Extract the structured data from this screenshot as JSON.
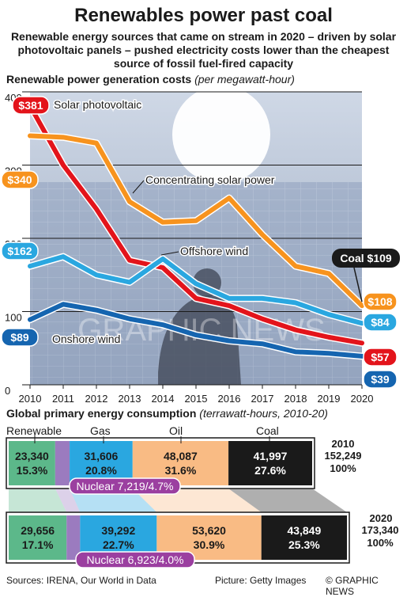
{
  "header": {
    "title": "Renewables power past coal",
    "subtitle": "Renewable energy sources that came on stream in 2020 – driven by solar photovoltaic panels – pushed electricity costs lower than the cheapest source of fossil fuel-fired capacity"
  },
  "chart_data": [
    {
      "type": "line",
      "title": "Renewable power generation costs",
      "units": "(per megawatt-hour)",
      "x": [
        "2010",
        "2011",
        "2012",
        "2013",
        "2014",
        "2015",
        "2016",
        "2017",
        "2018",
        "2019",
        "2020"
      ],
      "ylim": [
        0,
        400
      ],
      "yticks": [
        "0",
        "100",
        "200",
        "300",
        "400"
      ],
      "grid": true,
      "series": [
        {
          "name": "Solar photovoltaic",
          "color": "#e3141b",
          "start_label": "$381",
          "end_label": "$57",
          "values": [
            381,
            300,
            240,
            170,
            160,
            118,
            108,
            90,
            75,
            65,
            57
          ]
        },
        {
          "name": "Concentrating solar power",
          "color": "#f7931e",
          "start_label": "$340",
          "end_label": "$108",
          "values": [
            340,
            338,
            330,
            250,
            222,
            224,
            255,
            205,
            162,
            152,
            108
          ]
        },
        {
          "name": "Offshore wind",
          "color": "#2aa7e0",
          "start_label": "$162",
          "end_label": "$84",
          "values": [
            162,
            175,
            150,
            140,
            172,
            138,
            118,
            118,
            112,
            96,
            84
          ]
        },
        {
          "name": "Onshore wind",
          "color": "#1565b0",
          "start_label": "$89",
          "end_label": "$39",
          "values": [
            89,
            110,
            102,
            90,
            82,
            68,
            60,
            56,
            45,
            43,
            39
          ]
        }
      ],
      "reference": {
        "label": "Coal $109",
        "value": 109
      }
    },
    {
      "type": "bar",
      "title": "Global primary energy consumption",
      "units": "(terrawatt-hours, 2010-20)",
      "categories": [
        "Renewable",
        "Nuclear",
        "Gas",
        "Oil",
        "Coal"
      ],
      "colors": [
        "#5cb88a",
        "#9b7bbf",
        "#2aa7e0",
        "#f9bb84",
        "#1a1a1a"
      ],
      "series": [
        {
          "name": "2010",
          "total": "152,249",
          "total_pct": "100%",
          "values": [
            23340,
            7219,
            31606,
            48087,
            41997
          ],
          "labels": [
            "23,340",
            "7,219",
            "31,606",
            "48,087",
            "41,997"
          ],
          "pcts": [
            "15.3%",
            "4.7%",
            "20.8%",
            "31.6%",
            "27.6%"
          ]
        },
        {
          "name": "2020",
          "total": "173,340",
          "total_pct": "100%",
          "values": [
            29656,
            6923,
            39292,
            53620,
            43849
          ],
          "labels": [
            "29,656",
            "6,923",
            "39,292",
            "53,620",
            "43,849"
          ],
          "pcts": [
            "17.1%",
            "4.0%",
            "22.7%",
            "30.9%",
            "25.3%"
          ]
        }
      ]
    }
  ],
  "watermark": "GRAPHIC NEWS",
  "footer": {
    "sources": "Sources: IRENA, Our World in Data",
    "picture": "Picture: Getty Images",
    "credit": "© GRAPHIC NEWS"
  }
}
